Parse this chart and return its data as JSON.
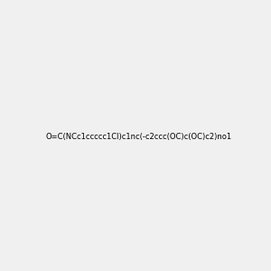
{
  "smiles": "O=C(NCc1ccccc1Cl)c1nc(-c2ccc(OC)c(OC)c2)no1",
  "image_size": 300,
  "background_color": "#f0f0f0",
  "title": ""
}
